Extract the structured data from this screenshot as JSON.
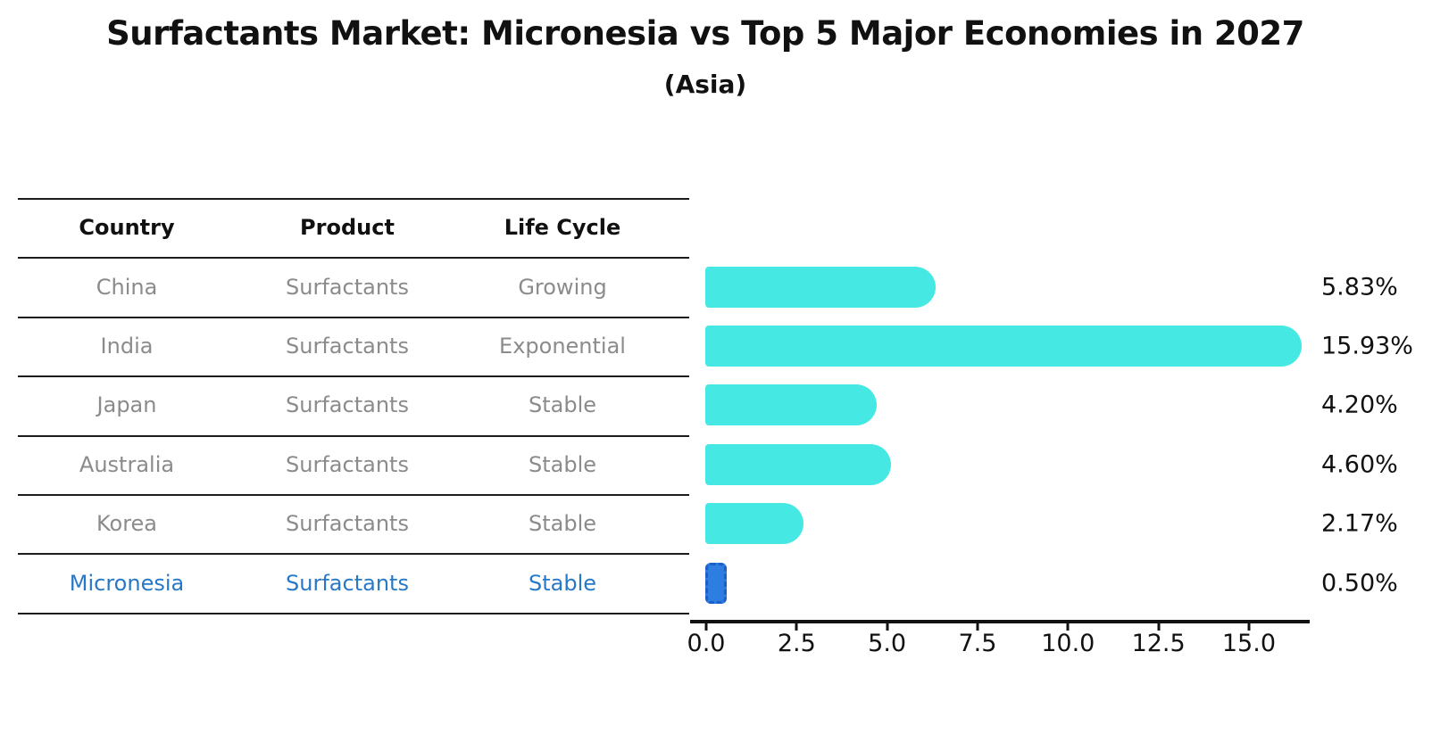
{
  "title": "Surfactants Market: Micronesia vs Top 5 Major Economies in 2027",
  "subtitle": "(Asia)",
  "table": {
    "headers": [
      "Country",
      "Product",
      "Life Cycle"
    ],
    "rows": [
      {
        "country": "China",
        "product": "Surfactants",
        "life_cycle": "Growing"
      },
      {
        "country": "India",
        "product": "Surfactants",
        "life_cycle": "Exponential"
      },
      {
        "country": "Japan",
        "product": "Surfactants",
        "life_cycle": "Stable"
      },
      {
        "country": "Australia",
        "product": "Surfactants",
        "life_cycle": "Stable"
      },
      {
        "country": "Korea",
        "product": "Surfactants",
        "life_cycle": "Stable"
      },
      {
        "country": "Micronesia",
        "product": "Surfactants",
        "life_cycle": "Stable"
      }
    ],
    "highlight_row_index": 5
  },
  "chart_data": {
    "type": "bar",
    "orientation": "horizontal",
    "title": "Surfactants Market: Micronesia vs Top 5 Major Economies in 2027",
    "subtitle": "(Asia)",
    "categories": [
      "China",
      "India",
      "Japan",
      "Australia",
      "Korea",
      "Micronesia"
    ],
    "values": [
      5.83,
      15.93,
      4.2,
      4.6,
      2.17,
      0.5
    ],
    "value_labels": [
      "5.83%",
      "15.93%",
      "4.20%",
      "4.60%",
      "2.17%",
      "0.50%"
    ],
    "xlabel": "",
    "ylabel": "",
    "xlim": [
      0,
      16.7
    ],
    "xticks": [
      0.0,
      2.5,
      5.0,
      7.5,
      10.0,
      12.5,
      15.0
    ],
    "xtick_labels": [
      "0.0",
      "2.5",
      "5.0",
      "7.5",
      "10.0",
      "12.5",
      "15.0"
    ],
    "grid": false,
    "legend": false,
    "highlight_index": 5,
    "unit": "%"
  },
  "colors": {
    "bar_fill": "#45e8e2",
    "highlight_fill": "#2d7ee0",
    "highlight_dash": "#1d5fc9",
    "highlight_text": "#2878c8",
    "table_text": "#8b8b8b",
    "axis": "#111111"
  }
}
